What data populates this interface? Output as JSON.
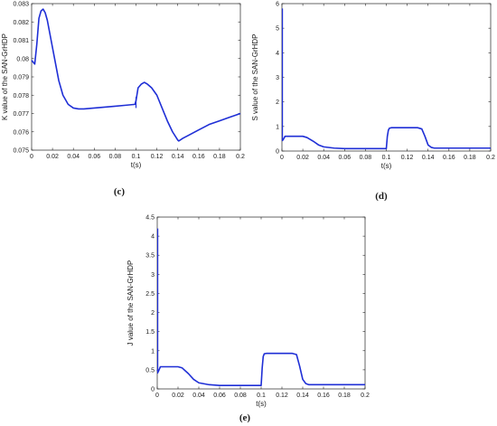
{
  "chart_data": [
    {
      "type": "line",
      "panel_label": "(c)",
      "xlabel": "t(s)",
      "ylabel": "K value of the SAN-GrHDP",
      "xlim": [
        0,
        0.2
      ],
      "ylim": [
        0.075,
        0.083
      ],
      "xticks": [
        "0",
        "0.02",
        "0.04",
        "0.06",
        "0.08",
        "0.1",
        "0.12",
        "0.14",
        "0.16",
        "0.18",
        "0.2"
      ],
      "yticks": [
        "0.075",
        "0.076",
        "0.077",
        "0.078",
        "0.079",
        "0.08",
        "0.081",
        "0.082",
        "0.083"
      ],
      "series": [
        {
          "color": "#1f2fd6",
          "x": [
            0,
            0.003,
            0.005,
            0.007,
            0.009,
            0.011,
            0.013,
            0.015,
            0.017,
            0.02,
            0.023,
            0.026,
            0.03,
            0.035,
            0.04,
            0.045,
            0.05,
            0.06,
            0.07,
            0.08,
            0.09,
            0.099,
            0.1,
            0.102,
            0.105,
            0.108,
            0.111,
            0.115,
            0.12,
            0.125,
            0.13,
            0.135,
            0.14,
            0.141,
            0.145,
            0.15,
            0.16,
            0.17,
            0.18,
            0.19,
            0.2
          ],
          "y": [
            0.0799,
            0.0797,
            0.0808,
            0.0822,
            0.0826,
            0.0827,
            0.0825,
            0.0821,
            0.0815,
            0.0806,
            0.0797,
            0.0788,
            0.078,
            0.0775,
            0.0773,
            0.07725,
            0.07725,
            0.0773,
            0.07735,
            0.0774,
            0.07745,
            0.0775,
            0.0777,
            0.0784,
            0.0786,
            0.0787,
            0.0786,
            0.0784,
            0.078,
            0.0773,
            0.0766,
            0.076,
            0.07555,
            0.0755,
            0.07565,
            0.0758,
            0.0761,
            0.0764,
            0.0766,
            0.0768,
            0.077
          ],
          "spikes": [
            {
              "x": 0.1,
              "y": [
                0.0773,
                0.0779
              ]
            }
          ]
        }
      ]
    },
    {
      "type": "line",
      "panel_label": "(d)",
      "xlabel": "t(s)",
      "ylabel": "S value of the SAN-GrHDP",
      "xlim": [
        0,
        0.2
      ],
      "ylim": [
        0,
        6
      ],
      "xticks": [
        "0",
        "0.02",
        "0.04",
        "0.06",
        "0.08",
        "0.1",
        "0.12",
        "0.14",
        "0.16",
        "0.18",
        "0.2"
      ],
      "yticks": [
        "0",
        "1",
        "2",
        "3",
        "4",
        "5",
        "6"
      ],
      "series": [
        {
          "color": "#1f2fd6",
          "x": [
            0,
            0.001,
            0.003,
            0.005,
            0.02,
            0.024,
            0.03,
            0.035,
            0.04,
            0.05,
            0.06,
            0.07,
            0.08,
            0.099,
            0.1,
            0.101,
            0.102,
            0.103,
            0.105,
            0.12,
            0.13,
            0.134,
            0.137,
            0.14,
            0.143,
            0.146,
            0.15,
            0.16,
            0.17,
            0.18,
            0.19,
            0.2
          ],
          "y": [
            0.5,
            0.45,
            0.6,
            0.6,
            0.6,
            0.55,
            0.4,
            0.25,
            0.17,
            0.12,
            0.1,
            0.1,
            0.1,
            0.1,
            0.1,
            0.6,
            0.85,
            0.93,
            0.95,
            0.95,
            0.95,
            0.9,
            0.6,
            0.25,
            0.15,
            0.12,
            0.12,
            0.12,
            0.12,
            0.12,
            0.12,
            0.12
          ],
          "spikes": [
            {
              "x": 0.0005,
              "y": [
                0.4,
                5.8
              ]
            }
          ]
        }
      ]
    },
    {
      "type": "line",
      "panel_label": "(e)",
      "xlabel": "t(s)",
      "ylabel": "J value of the SAN-GrHDP",
      "xlim": [
        0,
        0.2
      ],
      "ylim": [
        0,
        4.5
      ],
      "xticks": [
        "0",
        "0.02",
        "0.04",
        "0.06",
        "0.08",
        "0.1",
        "0.12",
        "0.14",
        "0.16",
        "0.18",
        "0.2"
      ],
      "yticks": [
        "0",
        "0.5",
        "1",
        "1.5",
        "2",
        "2.5",
        "3",
        "3.5",
        "4",
        "4.5"
      ],
      "series": [
        {
          "color": "#1f2fd6",
          "x": [
            0,
            0.001,
            0.003,
            0.005,
            0.02,
            0.024,
            0.03,
            0.035,
            0.04,
            0.05,
            0.06,
            0.07,
            0.08,
            0.099,
            0.1,
            0.101,
            0.102,
            0.103,
            0.105,
            0.12,
            0.13,
            0.134,
            0.137,
            0.14,
            0.143,
            0.146,
            0.15,
            0.16,
            0.17,
            0.18,
            0.19,
            0.2
          ],
          "y": [
            0.5,
            0.45,
            0.58,
            0.58,
            0.58,
            0.55,
            0.4,
            0.25,
            0.16,
            0.11,
            0.09,
            0.09,
            0.09,
            0.09,
            0.09,
            0.55,
            0.85,
            0.92,
            0.93,
            0.93,
            0.93,
            0.9,
            0.6,
            0.25,
            0.14,
            0.11,
            0.11,
            0.11,
            0.11,
            0.11,
            0.11,
            0.11
          ],
          "spikes": [
            {
              "x": 0.0005,
              "y": [
                0.4,
                4.2
              ]
            }
          ]
        }
      ]
    }
  ]
}
